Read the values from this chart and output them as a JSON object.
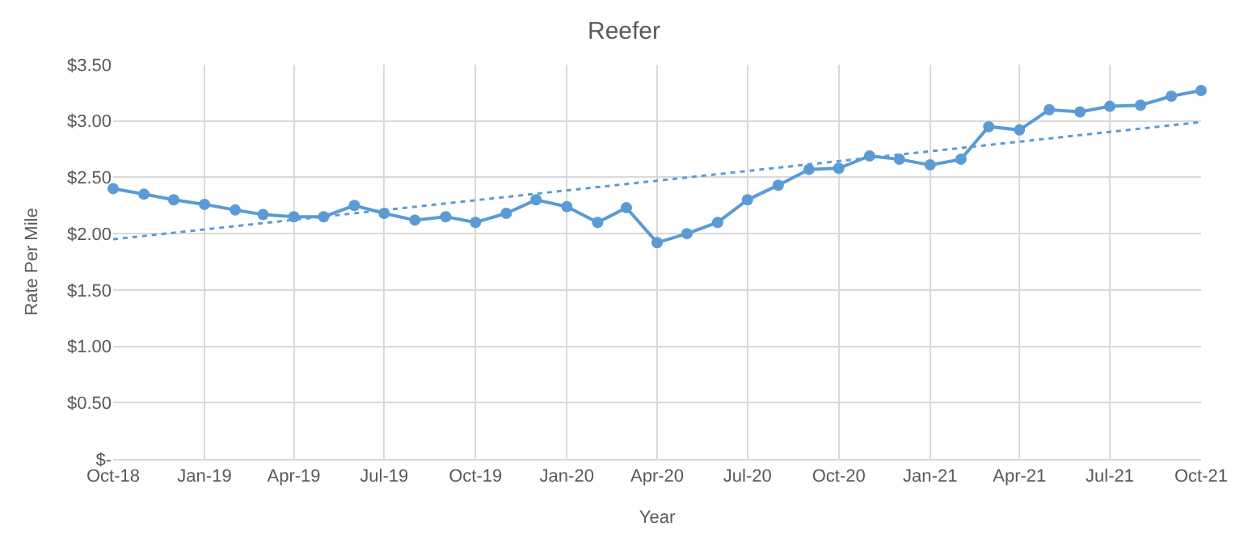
{
  "chart_data": {
    "type": "line",
    "title": "Reefer",
    "xlabel": "Year",
    "ylabel": "Rate Per Mile",
    "x": [
      "2018-10",
      "2018-11",
      "2018-12",
      "2019-01",
      "2019-02",
      "2019-03",
      "2019-04",
      "2019-05",
      "2019-06",
      "2019-07",
      "2019-08",
      "2019-09",
      "2019-10",
      "2019-11",
      "2019-12",
      "2020-01",
      "2020-02",
      "2020-03",
      "2020-04",
      "2020-05",
      "2020-06",
      "2020-07",
      "2020-08",
      "2020-09",
      "2020-10",
      "2020-11",
      "2020-12",
      "2021-01",
      "2021-02",
      "2021-03",
      "2021-04",
      "2021-05",
      "2021-06",
      "2021-07",
      "2021-08",
      "2021-09",
      "2021-10"
    ],
    "series": [
      {
        "color": "#5b9bd5",
        "marker": "circle",
        "line_style": "solid",
        "values": [
          2.4,
          2.35,
          2.3,
          2.26,
          2.21,
          2.17,
          2.15,
          2.15,
          2.25,
          2.18,
          2.12,
          2.15,
          2.1,
          2.18,
          2.3,
          2.24,
          2.1,
          2.23,
          1.92,
          2.0,
          2.1,
          2.3,
          2.43,
          2.57,
          2.58,
          2.69,
          2.66,
          2.61,
          2.66,
          2.95,
          2.92,
          3.1,
          3.08,
          3.13,
          3.14,
          3.22,
          3.27
        ]
      },
      {
        "type": "line",
        "color": "#5b9bd5",
        "marker": "none",
        "line_style": "dotted",
        "x": [
          "2018-10",
          "2021-10"
        ],
        "values": [
          1.95,
          2.99
        ]
      }
    ],
    "xlim": [
      "2018-10",
      "2021-10"
    ],
    "xticks": [
      {
        "value": "2018-10",
        "label": "Oct-18"
      },
      {
        "value": "2019-01",
        "label": "Jan-19"
      },
      {
        "value": "2019-04",
        "label": "Apr-19"
      },
      {
        "value": "2019-07",
        "label": "Jul-19"
      },
      {
        "value": "2019-10",
        "label": "Oct-19"
      },
      {
        "value": "2020-01",
        "label": "Jan-20"
      },
      {
        "value": "2020-04",
        "label": "Apr-20"
      },
      {
        "value": "2020-07",
        "label": "Jul-20"
      },
      {
        "value": "2020-10",
        "label": "Oct-20"
      },
      {
        "value": "2021-01",
        "label": "Jan-21"
      },
      {
        "value": "2021-04",
        "label": "Apr-21"
      },
      {
        "value": "2021-07",
        "label": "Jul-21"
      },
      {
        "value": "2021-10",
        "label": "Oct-21"
      }
    ],
    "ylim": [
      0,
      3.5
    ],
    "yticks": [
      {
        "value": 0,
        "label": "$-"
      },
      {
        "value": 0.5,
        "label": "$0.50"
      },
      {
        "value": 1,
        "label": "$1.00"
      },
      {
        "value": 1.5,
        "label": "$1.50"
      },
      {
        "value": 2,
        "label": "$2.00"
      },
      {
        "value": 2.5,
        "label": "$2.50"
      },
      {
        "value": 3,
        "label": "$3.00"
      },
      {
        "value": 3.5,
        "label": "$3.50"
      }
    ],
    "grid": true
  }
}
